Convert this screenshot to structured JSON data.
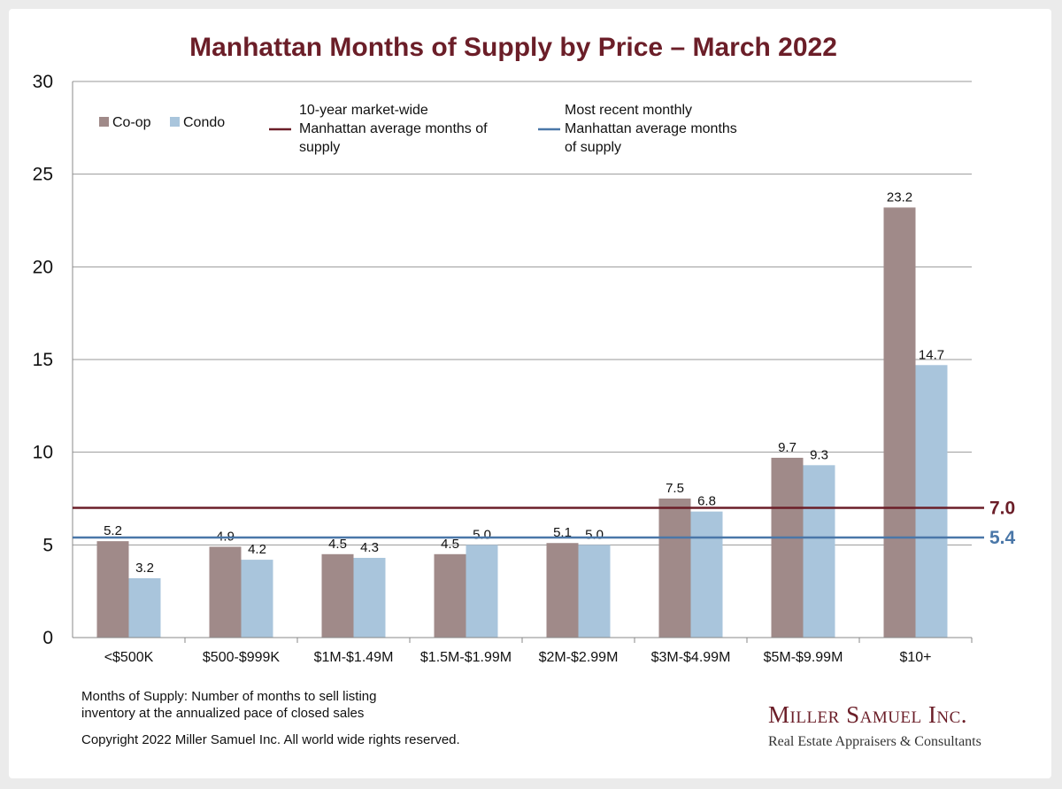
{
  "chart_data": {
    "type": "bar",
    "title": "Manhattan Months of Supply by Price – March 2022",
    "categories": [
      "<$500K",
      "$500-$999K",
      "$1M-$1.49M",
      "$1.5M-$1.99M",
      "$2M-$2.99M",
      "$3M-$4.99M",
      "$5M-$9.99M",
      "$10+"
    ],
    "series": [
      {
        "name": "Co-op",
        "color": "#a08a89",
        "values": [
          5.2,
          4.9,
          4.5,
          4.5,
          5.1,
          7.5,
          9.7,
          23.2
        ],
        "labels": [
          "5.2",
          "4.9",
          "4.5",
          "4.5",
          "5.1",
          "7.5",
          "9.7",
          "23.2"
        ]
      },
      {
        "name": "Condo",
        "color": "#a9c5dc",
        "values": [
          3.2,
          4.2,
          4.3,
          5.0,
          5.0,
          6.8,
          9.3,
          14.7
        ],
        "labels": [
          "3.2",
          "4.2",
          "4.3",
          "5.0",
          "5.0",
          "6.8",
          "9.3",
          "14.7"
        ]
      }
    ],
    "reference_lines": [
      {
        "name": "10-year market-wide Manhattan average months of supply",
        "legend_lines": [
          "10-year market-wide",
          "Manhattan average months of",
          "supply"
        ],
        "value": 7.0,
        "label": "7.0",
        "color": "#6b1e28"
      },
      {
        "name": "Most recent monthly Manhattan average months of supply",
        "legend_lines": [
          "Most recent monthly",
          "Manhattan average months",
          "of supply"
        ],
        "value": 5.4,
        "label": "5.4",
        "color": "#4a77a8"
      }
    ],
    "ylim": [
      0,
      30
    ],
    "yticks": [
      0,
      5,
      10,
      15,
      20,
      25,
      30
    ],
    "ytick_labels": [
      "0",
      "5",
      "10",
      "15",
      "20",
      "25",
      "30"
    ],
    "grid": true,
    "legend_position": "top-left"
  },
  "footer": {
    "note_line1": "Months of Supply: Number of months to sell listing",
    "note_line2": "inventory at the annualized pace of closed sales",
    "copyright": "Copyright 2022 Miller Samuel Inc.  All world wide rights reserved."
  },
  "brand": {
    "name": "Miller Samuel Inc.",
    "tagline": "Real Estate Appraisers & Consultants"
  }
}
